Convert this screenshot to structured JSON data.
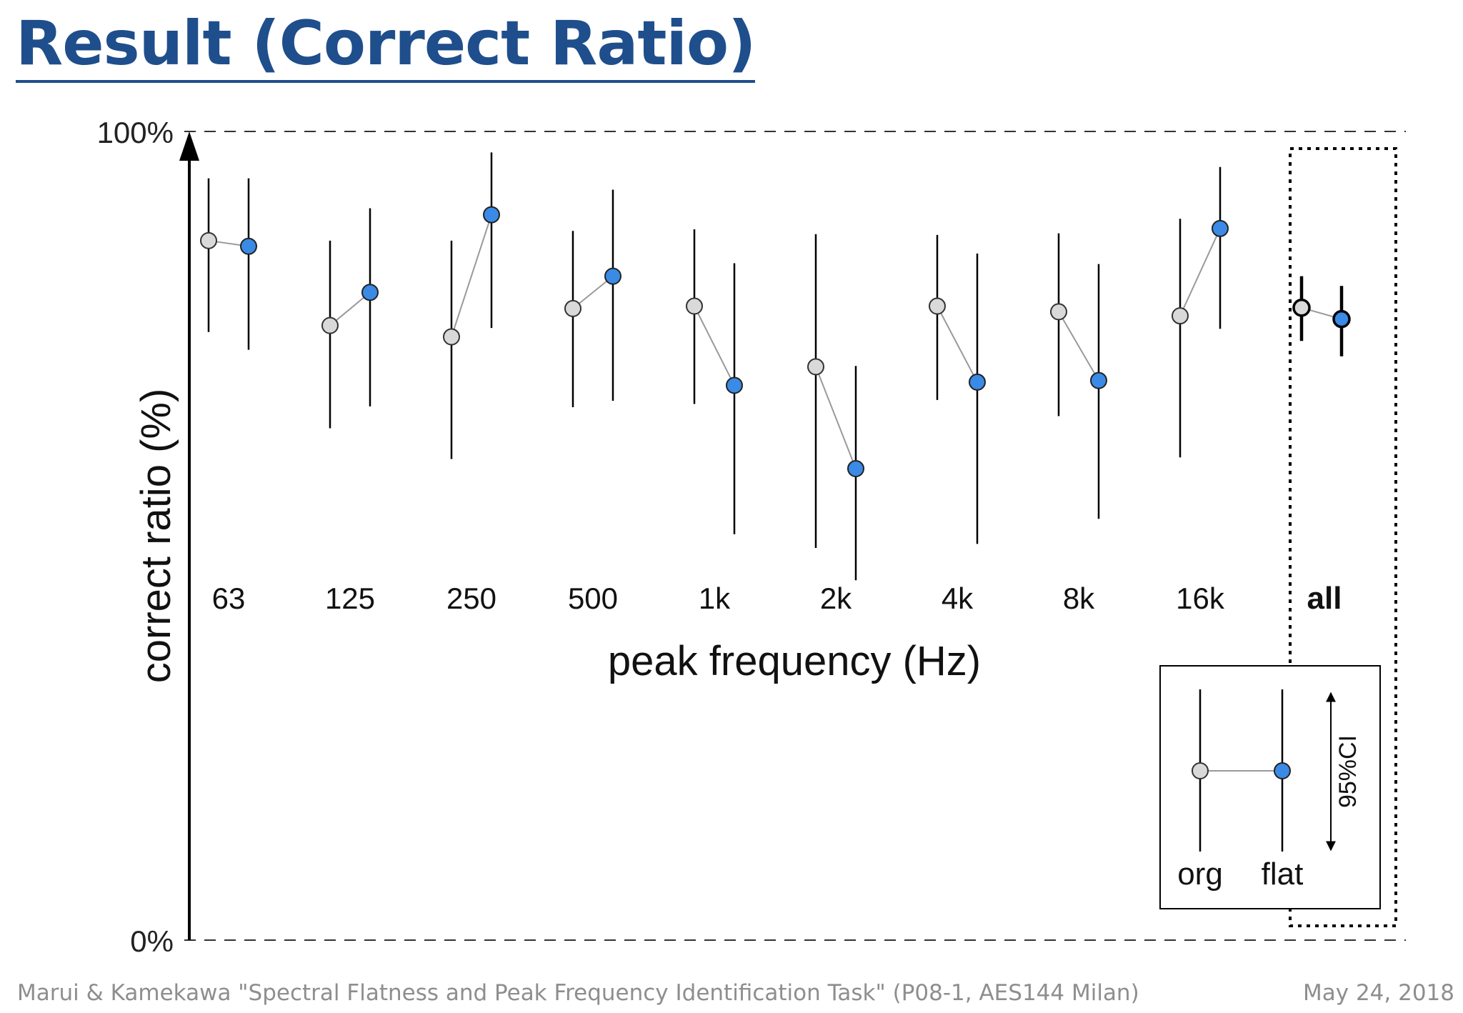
{
  "slide": {
    "title": "Result (Correct Ratio)",
    "footer_left": "Marui & Kamekawa \"Spectral Flatness and Peak Frequency Identification Task\" (P08-1, AES144 Milan)",
    "footer_right": "May 24, 2018"
  },
  "chart_data": {
    "type": "scatter",
    "title": "",
    "xlabel": "peak frequency (Hz)",
    "ylabel": "correct ratio (%)",
    "ylim": [
      0,
      100
    ],
    "y_tick_labels": [
      "0%",
      "100%"
    ],
    "categories": [
      "63",
      "125",
      "250",
      "500",
      "1k",
      "2k",
      "4k",
      "8k",
      "16k",
      "all"
    ],
    "grid": false,
    "series": [
      {
        "name": "org",
        "color": "#d9d9d9",
        "values": [
          86.5,
          76.0,
          74.6,
          78.1,
          78.4,
          70.9,
          78.4,
          77.7,
          77.2,
          78.2
        ],
        "ci_lower": [
          75.2,
          63.3,
          59.5,
          65.9,
          66.3,
          48.5,
          66.8,
          64.8,
          59.7,
          74.1
        ],
        "ci_upper": [
          94.2,
          86.5,
          86.5,
          87.7,
          87.9,
          87.3,
          87.2,
          87.4,
          89.2,
          82.1
        ]
      },
      {
        "name": "flat",
        "color": "#3a8ae6",
        "values": [
          85.8,
          80.1,
          89.7,
          82.1,
          68.6,
          58.3,
          69.0,
          69.2,
          88.0,
          76.8
        ],
        "ci_lower": [
          73.0,
          66.0,
          75.7,
          66.7,
          50.2,
          44.5,
          49.0,
          52.1,
          75.6,
          72.2
        ],
        "ci_upper": [
          94.2,
          90.5,
          97.4,
          92.8,
          83.7,
          71.0,
          84.9,
          83.6,
          95.6,
          80.9
        ]
      }
    ],
    "legend": {
      "placement": "bottom-right",
      "org_label": "org",
      "flat_label": "flat",
      "ci_label": "95%CI"
    }
  }
}
